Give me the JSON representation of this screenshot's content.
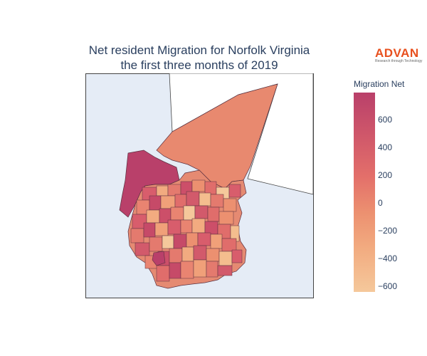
{
  "title": {
    "line1": "Net resident Migration for Norfolk Virginia",
    "line2": "the first three months of 2019"
  },
  "logo": {
    "name": "ADVAN",
    "tagline": "Research through Technology"
  },
  "colorbar": {
    "title": "Migration Net",
    "ticks": [
      "600",
      "400",
      "200",
      "0",
      "−200",
      "−400",
      "−600"
    ],
    "range": [
      -640,
      800
    ],
    "colors": [
      "#f5c89b",
      "#f2ab80",
      "#ec9070",
      "#e36f6a",
      "#d0586a",
      "#b9406a"
    ]
  },
  "map": {
    "land_color": "#ffffff",
    "water_color": "#e5ecf6",
    "tract_outline": "#5a3040"
  }
}
